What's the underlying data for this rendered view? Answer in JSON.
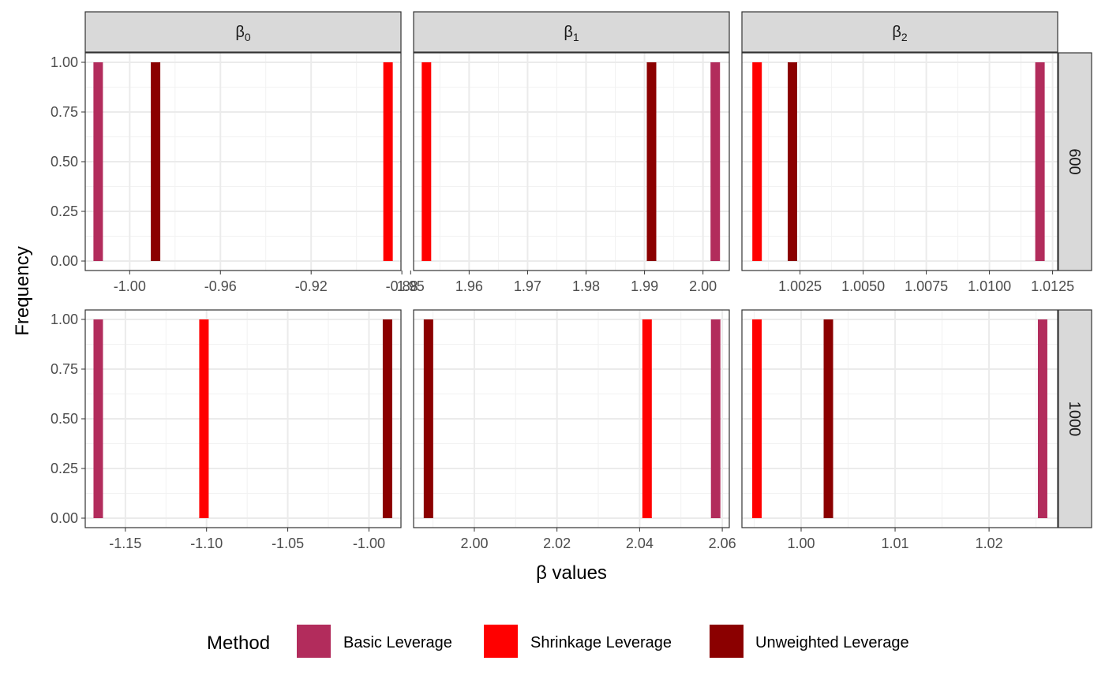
{
  "chart_data": {
    "type": "bar",
    "ylabel": "Frequency",
    "xlabel": "β values",
    "legend": {
      "title": "Method",
      "position": "bottom",
      "items": [
        {
          "label": "Basic Leverage",
          "color": "#B22C5C"
        },
        {
          "label": "Shrinkage Leverage",
          "color": "#FF0000"
        },
        {
          "label": "Unweighted Leverage",
          "color": "#8B0000"
        }
      ]
    },
    "column_strips": [
      {
        "base": "β",
        "sub": "0"
      },
      {
        "base": "β",
        "sub": "1"
      },
      {
        "base": "β",
        "sub": "2"
      }
    ],
    "row_strips": [
      "600",
      "1000"
    ],
    "y_ticks": [
      "0.00",
      "0.25",
      "0.50",
      "0.75",
      "1.00"
    ],
    "y_tick_values": [
      0,
      0.25,
      0.5,
      0.75,
      1.0
    ],
    "ylim": [
      0,
      1
    ],
    "grid": true,
    "panels": [
      {
        "row": "600",
        "col": "β0",
        "xlim": [
          -1.0196,
          -0.8804
        ],
        "x_ticks": [
          -1.0,
          -0.96,
          -0.92,
          -0.88
        ],
        "x_tick_labels": [
          "-1.00",
          "-0.96",
          "-0.92",
          "-0.88"
        ],
        "bars": [
          {
            "method": "Basic Leverage",
            "x": -1.0139,
            "count": 1
          },
          {
            "method": "Unweighted Leverage",
            "x": -0.9886,
            "count": 1
          },
          {
            "method": "Shrinkage Leverage",
            "x": -0.8861,
            "count": 1
          }
        ]
      },
      {
        "row": "600",
        "col": "β1",
        "xlim": [
          1.9505,
          2.0045
        ],
        "x_ticks": [
          1.95,
          1.96,
          1.97,
          1.98,
          1.99,
          2.0
        ],
        "x_tick_labels": [
          "1.95",
          "1.96",
          "1.97",
          "1.98",
          "1.99",
          "2.00"
        ],
        "bars": [
          {
            "method": "Shrinkage Leverage",
            "x": 1.9527,
            "count": 1
          },
          {
            "method": "Unweighted Leverage",
            "x": 1.9912,
            "count": 1
          },
          {
            "method": "Basic Leverage",
            "x": 2.0021,
            "count": 1
          }
        ]
      },
      {
        "row": "600",
        "col": "β2",
        "xlim": [
          1.0002,
          1.0127
        ],
        "x_ticks": [
          1.0025,
          1.005,
          1.0075,
          1.01,
          1.0125
        ],
        "x_tick_labels": [
          "1.0025",
          "1.0050",
          "1.0075",
          "1.0100",
          "1.0125"
        ],
        "bars": [
          {
            "method": "Shrinkage Leverage",
            "x": 1.0008,
            "count": 1
          },
          {
            "method": "Unweighted Leverage",
            "x": 1.0022,
            "count": 1
          },
          {
            "method": "Basic Leverage",
            "x": 1.012,
            "count": 1
          }
        ]
      },
      {
        "row": "1000",
        "col": "β0",
        "xlim": [
          -1.1747,
          -0.9803
        ],
        "x_ticks": [
          -1.15,
          -1.1,
          -1.05,
          -1.0
        ],
        "x_tick_labels": [
          "-1.15",
          "-1.10",
          "-1.05",
          "-1.00"
        ],
        "bars": [
          {
            "method": "Basic Leverage",
            "x": -1.1667,
            "count": 1
          },
          {
            "method": "Shrinkage Leverage",
            "x": -1.1016,
            "count": 1
          },
          {
            "method": "Unweighted Leverage",
            "x": -0.9886,
            "count": 1
          }
        ]
      },
      {
        "row": "1000",
        "col": "β1",
        "xlim": [
          1.9853,
          2.0617
        ],
        "x_ticks": [
          2.0,
          2.02,
          2.04,
          2.06
        ],
        "x_tick_labels": [
          "2.00",
          "2.02",
          "2.04",
          "2.06"
        ],
        "bars": [
          {
            "method": "Unweighted Leverage",
            "x": 1.9889,
            "count": 1
          },
          {
            "method": "Shrinkage Leverage",
            "x": 2.0418,
            "count": 1
          },
          {
            "method": "Basic Leverage",
            "x": 2.0584,
            "count": 1
          }
        ]
      },
      {
        "row": "1000",
        "col": "β2",
        "xlim": [
          0.9937,
          1.0273
        ],
        "x_ticks": [
          1.0,
          1.01,
          1.02
        ],
        "x_tick_labels": [
          "1.00",
          "1.01",
          "1.02"
        ],
        "bars": [
          {
            "method": "Shrinkage Leverage",
            "x": 0.9953,
            "count": 1
          },
          {
            "method": "Unweighted Leverage",
            "x": 1.0029,
            "count": 1
          },
          {
            "method": "Basic Leverage",
            "x": 1.0257,
            "count": 1
          }
        ]
      }
    ]
  }
}
